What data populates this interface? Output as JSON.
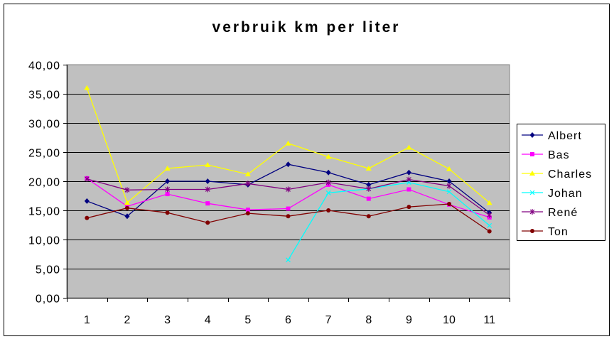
{
  "chart_data": {
    "type": "line",
    "title": "verbruik km  per liter",
    "xlabel": "",
    "ylabel": "",
    "categories": [
      "1",
      "2",
      "3",
      "4",
      "5",
      "6",
      "7",
      "8",
      "9",
      "10",
      "11"
    ],
    "ylim": [
      0,
      40
    ],
    "yticks": [
      "0,00",
      "5,00",
      "10,00",
      "15,00",
      "20,00",
      "25,00",
      "30,00",
      "35,00",
      "40,00"
    ],
    "grid": "horizontal",
    "legend_position": "right",
    "colors": {
      "plot_background": "#c0c0c0",
      "gridline": "#000000"
    },
    "series": [
      {
        "name": "Albert",
        "color": "#000080",
        "marker": "diamond",
        "values": [
          16.6,
          14.0,
          20.0,
          20.0,
          19.4,
          22.9,
          21.5,
          19.4,
          21.5,
          20.0,
          14.6
        ]
      },
      {
        "name": "Bas",
        "color": "#ff00ff",
        "marker": "square",
        "values": [
          20.5,
          15.7,
          17.8,
          16.2,
          15.1,
          15.3,
          19.4,
          17.0,
          18.6,
          16.0,
          13.8
        ]
      },
      {
        "name": "Charles",
        "color": "#ffff00",
        "marker": "triangle",
        "values": [
          36.0,
          16.3,
          22.2,
          22.8,
          21.2,
          26.5,
          24.2,
          22.2,
          25.8,
          22.1,
          16.3
        ]
      },
      {
        "name": "Johan",
        "color": "#00ffff",
        "marker": "x",
        "values": [
          null,
          null,
          null,
          null,
          null,
          6.5,
          18.0,
          18.7,
          19.8,
          18.2,
          12.4
        ]
      },
      {
        "name": "René",
        "color": "#800080",
        "marker": "star",
        "values": [
          20.4,
          18.5,
          18.6,
          18.6,
          19.6,
          18.6,
          19.8,
          18.7,
          20.3,
          19.2,
          14.2
        ]
      },
      {
        "name": "Ton",
        "color": "#800000",
        "marker": "circle",
        "values": [
          13.7,
          15.4,
          14.6,
          12.9,
          14.5,
          14.0,
          15.0,
          14.0,
          15.6,
          16.1,
          11.4
        ]
      }
    ]
  }
}
